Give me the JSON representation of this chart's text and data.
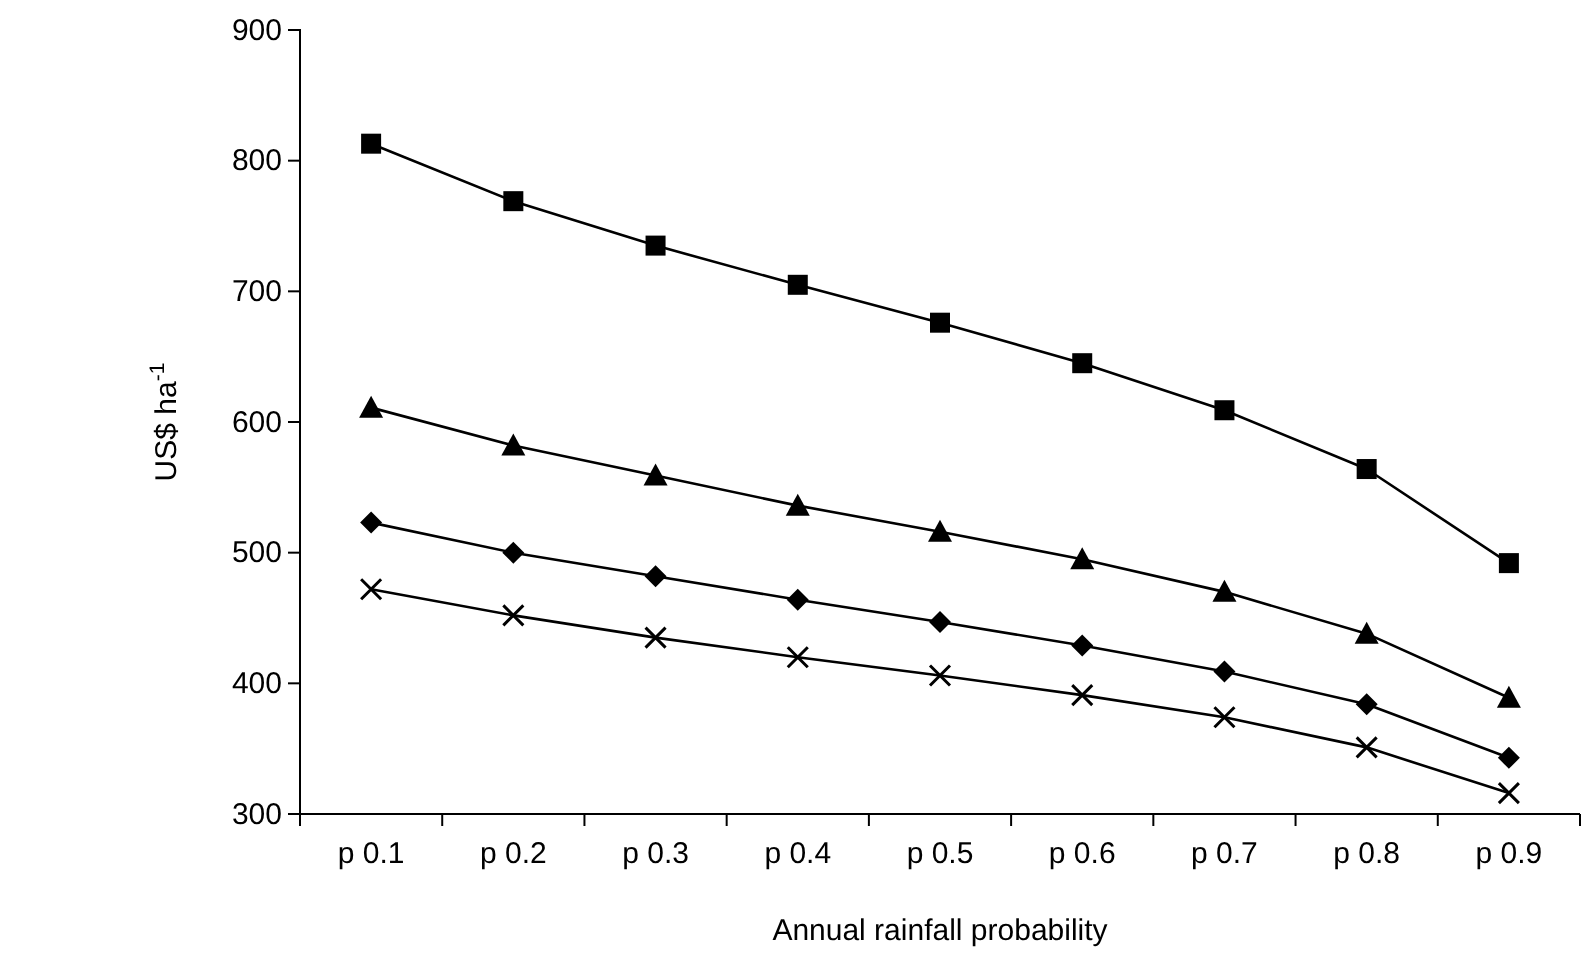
{
  "chart_data": {
    "type": "line",
    "xlabel": "Annual rainfall probability",
    "ylabel": "US$ ha$^{-1}$",
    "categories": [
      "p 0.1",
      "p 0.2",
      "p 0.3",
      "p 0.4",
      "p 0.5",
      "p 0.6",
      "p 0.7",
      "p 0.8",
      "p 0.9"
    ],
    "ylim": [
      300,
      900
    ],
    "yticks": [
      300,
      400,
      500,
      600,
      700,
      800,
      900
    ],
    "grid": false,
    "series": [
      {
        "color": "#000000",
        "marker": "square",
        "values": [
          813,
          769,
          735,
          705,
          676,
          645,
          609,
          564,
          492
        ]
      },
      {
        "color": "#000000",
        "marker": "triangle",
        "values": [
          611,
          582,
          559,
          536,
          516,
          495,
          470,
          438,
          389
        ]
      },
      {
        "color": "#000000",
        "marker": "diamond",
        "values": [
          523,
          500,
          482,
          464,
          447,
          429,
          409,
          384,
          343
        ]
      },
      {
        "color": "#000000",
        "marker": "cross",
        "values": [
          472,
          452,
          435,
          420,
          406,
          391,
          374,
          351,
          316
        ]
      }
    ]
  }
}
